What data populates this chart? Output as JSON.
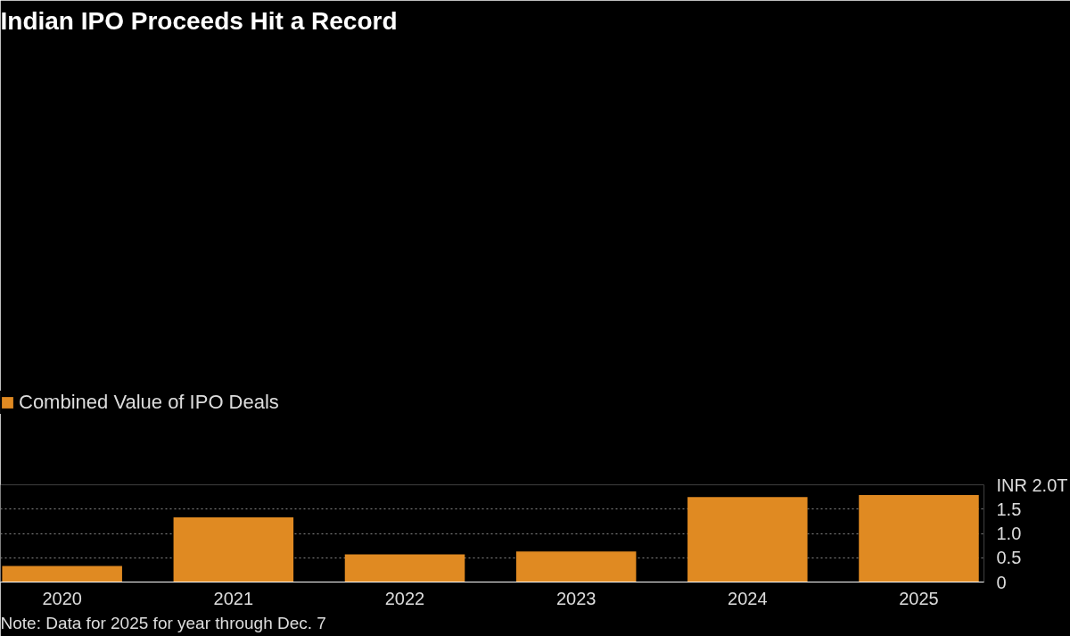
{
  "chart_data": {
    "type": "bar",
    "title": "Indian IPO Proceeds Hit a Record",
    "categories": [
      "2020",
      "2021",
      "2022",
      "2023",
      "2024",
      "2025"
    ],
    "series": [
      {
        "name": "Combined Value of IPO Deals",
        "color": "#e08a22",
        "values": [
          0.33,
          1.33,
          0.57,
          0.63,
          1.75,
          1.79
        ]
      }
    ],
    "ylim": [
      0,
      2.0
    ],
    "yticks": [
      0,
      0.5,
      {
        "value": 1.0,
        "label": "1.0"
      },
      1.5,
      {
        "value": 2.0,
        "label": "INR 2.0T"
      }
    ],
    "grid": "y",
    "legend": "top",
    "annotations": [
      "Note: Data for 2025 for year through Dec. 7"
    ]
  }
}
